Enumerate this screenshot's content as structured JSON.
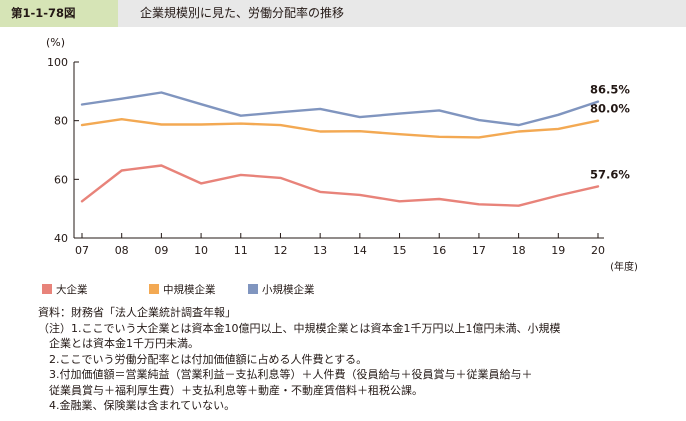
{
  "header": {
    "figure_number": "第1-1-78図",
    "title": "企業規模別に見た、労働分配率の推移"
  },
  "chart_data": {
    "type": "line",
    "ylabel": "(%)",
    "xlabel": "(年度)",
    "ylim": [
      40,
      100
    ],
    "yticks": [
      "40",
      "60",
      "80",
      "100"
    ],
    "categories": [
      "07",
      "08",
      "09",
      "10",
      "11",
      "12",
      "13",
      "14",
      "15",
      "16",
      "17",
      "18",
      "19",
      "20"
    ],
    "grid": false,
    "legend_position": "bottom-left",
    "series": [
      {
        "name": "大企業",
        "color": "#e8837a",
        "values": [
          52.5,
          63.0,
          64.7,
          58.6,
          61.5,
          60.5,
          55.7,
          54.7,
          52.5,
          53.3,
          51.5,
          51.0,
          54.5,
          57.6
        ],
        "end_label": "57.6%"
      },
      {
        "name": "中規模企業",
        "color": "#f3a953",
        "values": [
          78.5,
          80.5,
          78.7,
          78.7,
          79.0,
          78.5,
          76.3,
          76.4,
          75.4,
          74.5,
          74.3,
          76.3,
          77.2,
          80.0
        ],
        "end_label": "80.0%"
      },
      {
        "name": "小規模企業",
        "color": "#8095bf",
        "values": [
          85.5,
          87.5,
          89.6,
          85.6,
          81.7,
          82.9,
          84.0,
          81.2,
          82.4,
          83.5,
          80.2,
          78.5,
          82.0,
          86.5
        ],
        "end_label": "86.5%"
      }
    ]
  },
  "notes": {
    "source": "資料：財務省「法人企業統計調査年報」",
    "lines": [
      "（注）1.ここでいう大企業とは資本金10億円以上、中規模企業とは資本金1千万円以上1億円未満、小規模",
      "企業とは資本金1千万円未満。",
      "2.ここでいう労働分配率とは付加価値額に占める人件費とする。",
      "3.付加価値額＝営業純益（営業利益－支払利息等）＋人件費（役員給与＋役員賞与＋従業員給与＋",
      "従業員賞与＋福利厚生費）＋支払利息等＋動産・不動産賃借料＋租税公課。",
      "4.金融業、保険業は含まれていない。"
    ]
  }
}
